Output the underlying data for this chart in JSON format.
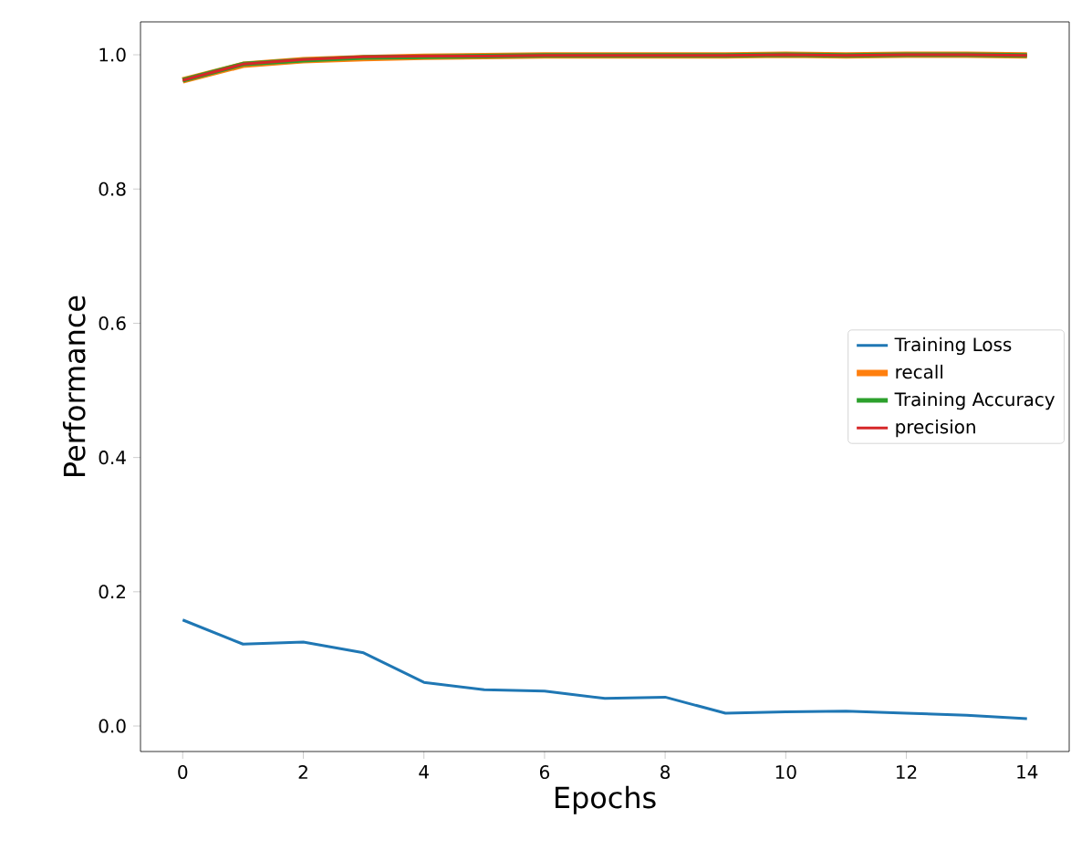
{
  "chart_data": {
    "type": "line",
    "xlabel": "Epochs",
    "ylabel": "Performance",
    "x": [
      0,
      1,
      2,
      3,
      4,
      5,
      6,
      7,
      8,
      9,
      10,
      11,
      12,
      13,
      14
    ],
    "series": [
      {
        "name": "Training Loss",
        "color": "#1f77b4",
        "values": [
          0.158,
          0.122,
          0.125,
          0.109,
          0.065,
          0.054,
          0.052,
          0.041,
          0.043,
          0.019,
          0.021,
          0.022,
          0.019,
          0.016,
          0.011
        ]
      },
      {
        "name": "recall",
        "color": "#ff7f0e",
        "values": [
          0.962,
          0.985,
          0.992,
          0.995,
          0.997,
          0.998,
          0.999,
          0.999,
          0.999,
          0.999,
          1.0,
          0.999,
          1.0,
          1.0,
          0.999
        ]
      },
      {
        "name": "Training Accuracy",
        "color": "#2ca02c",
        "values": [
          0.962,
          0.986,
          0.992,
          0.996,
          0.997,
          0.998,
          0.999,
          0.999,
          0.999,
          0.999,
          1.0,
          0.999,
          1.0,
          1.0,
          0.999
        ]
      },
      {
        "name": "precision",
        "color": "#d62728",
        "values": [
          0.962,
          0.986,
          0.993,
          0.997,
          0.998,
          0.998,
          0.999,
          0.999,
          0.999,
          0.999,
          1.0,
          0.999,
          1.0,
          1.0,
          0.999
        ]
      }
    ],
    "xlim": [
      -0.7,
      14.7
    ],
    "ylim": [
      -0.038,
      1.049
    ],
    "xticks": [
      0,
      2,
      4,
      6,
      8,
      10,
      12,
      14
    ],
    "yticks": [
      {
        "value": 0,
        "label": "0.0"
      },
      0.2,
      0.4,
      0.6,
      0.8,
      {
        "value": 1,
        "label": "1.0"
      }
    ],
    "grid": false,
    "legend": "right",
    "marker": "none",
    "line_style": "solid"
  }
}
